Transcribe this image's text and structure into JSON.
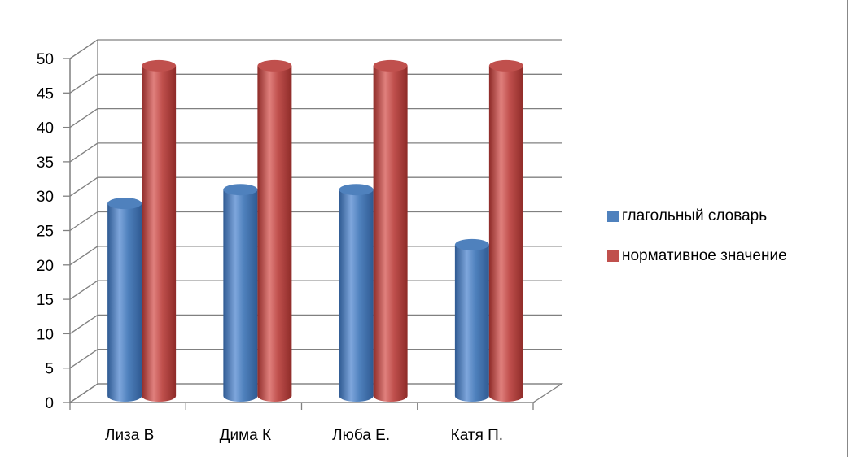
{
  "chart_data": {
    "type": "bar",
    "categories": [
      "Лиза В",
      "Дима К",
      "Люба Е.",
      "Катя П."
    ],
    "series": [
      {
        "name": "глагольный словарь",
        "values": [
          28,
          30,
          30,
          22
        ],
        "color": "#4f81bd"
      },
      {
        "name": "нормативное значение",
        "values": [
          48,
          48,
          48,
          48
        ],
        "color": "#c0504d"
      }
    ],
    "y_ticks": [
      "0",
      "5",
      "10",
      "15",
      "20",
      "25",
      "30",
      "35",
      "40",
      "45",
      "50"
    ],
    "ylim": [
      0,
      50
    ],
    "grid": true,
    "legend_position": "right"
  }
}
